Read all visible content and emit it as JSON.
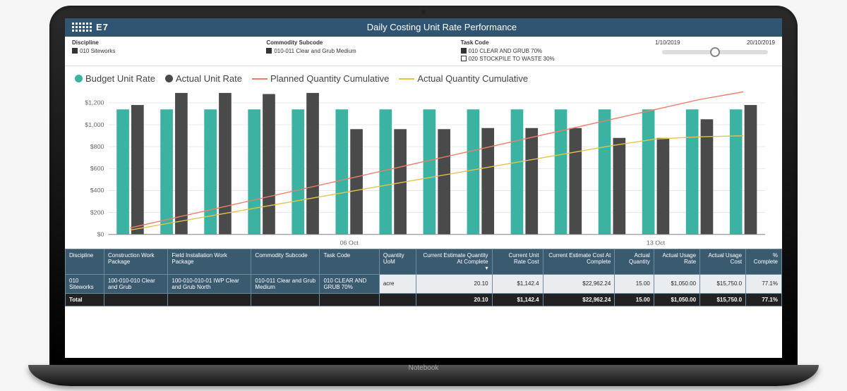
{
  "header": {
    "logo_text": "E7",
    "title": "Daily Costing Unit Rate Performance"
  },
  "filters": {
    "discipline": {
      "label": "Discipline",
      "items": [
        {
          "swatch": "#333333",
          "text": "010 Siteworks"
        }
      ]
    },
    "commodity": {
      "label": "Commodity Subcode",
      "items": [
        {
          "swatch": "#333333",
          "text": "010-011 Clear and Grub Medium"
        }
      ]
    },
    "task": {
      "label": "Task Code",
      "items": [
        {
          "swatch": "#333333",
          "text": "010 CLEAR AND GRUB 70%"
        },
        {
          "swatch": "empty",
          "text": "020 STOCKPILE TO WASTE 30%"
        }
      ]
    },
    "date_range": {
      "from": "1/10/2019",
      "to": "20/10/2019"
    }
  },
  "legend": [
    {
      "type": "dot",
      "color": "#3bb3a3",
      "label": "Budget Unit Rate"
    },
    {
      "type": "dot",
      "color": "#4a4a4a",
      "label": "Actual Unit Rate"
    },
    {
      "type": "line",
      "color": "#f07c6a",
      "label": "Planned Quantity Cumulative"
    },
    {
      "type": "line",
      "color": "#e6c24d",
      "label": "Actual Quantity Cumulative"
    }
  ],
  "chart": {
    "type": "bar+line",
    "background_color": "#ffffff",
    "grid_color": "#e6e6e6",
    "axis_color": "#888888",
    "label_fontsize": 9,
    "ylim": [
      0,
      1300
    ],
    "yticks": [
      0,
      200,
      400,
      600,
      800,
      1000,
      1200
    ],
    "ytick_labels": [
      "$0",
      "$200",
      "$400",
      "$600",
      "$800",
      "$1,000",
      "$1,200"
    ],
    "x_categories": [
      "01",
      "02",
      "03",
      "04",
      "05",
      "06 Oct",
      "07",
      "08",
      "09",
      "10",
      "11",
      "12",
      "13 Oct",
      "14",
      "15"
    ],
    "x_show_label": [
      false,
      false,
      false,
      false,
      false,
      true,
      false,
      false,
      false,
      false,
      false,
      false,
      true,
      false,
      false
    ],
    "series_bars": [
      {
        "name": "Budget Unit Rate",
        "color": "#3bb3a3",
        "values": [
          1140,
          1140,
          1140,
          1140,
          1140,
          1140,
          1140,
          1140,
          1140,
          1140,
          1140,
          1140,
          1140,
          1140,
          1140
        ]
      },
      {
        "name": "Actual Unit Rate",
        "color": "#4a4a4a",
        "values": [
          1180,
          1290,
          1290,
          1280,
          1290,
          960,
          960,
          960,
          970,
          970,
          970,
          880,
          880,
          1050,
          1180
        ]
      }
    ],
    "bar_group_width": 0.62,
    "bar_gap": 0.05,
    "series_lines": [
      {
        "name": "Planned Quantity Cumulative",
        "color": "#f07c6a",
        "width": 1.5,
        "values": [
          60,
          150,
          240,
          330,
          420,
          510,
          600,
          690,
          780,
          870,
          960,
          1050,
          1140,
          1230,
          1300
        ]
      },
      {
        "name": "Actual Quantity Cumulative",
        "color": "#e6c24d",
        "width": 1.5,
        "values": [
          40,
          110,
          180,
          250,
          320,
          390,
          460,
          530,
          600,
          670,
          740,
          810,
          870,
          890,
          900
        ]
      }
    ]
  },
  "table": {
    "columns": [
      "Discipline",
      "Construction Work Package",
      "Field Installation Work Package",
      "Commodity Subcode",
      "Task Code",
      "Quantity UoM",
      "Current Estimate Quantity At Complete",
      "Current Unit Rate Cost",
      "Current Estimate Cost At Complete",
      "Actual Quantity",
      "Actual Usage Rate",
      "Actual Usage Cost",
      "% Complete"
    ],
    "num_cols": [
      6,
      7,
      8,
      9,
      10,
      11,
      12
    ],
    "rows": [
      [
        "010 Siteworks",
        "100-010-010 Clear and Grub",
        "100-010-010-01 IWP Clear and Grub North",
        "010-011 Clear and Grub Medium",
        "010 CLEAR AND GRUB 70%",
        "acre",
        "20.10",
        "$1,142.4",
        "$22,962.24",
        "15.00",
        "$1,050.00",
        "$15,750.0",
        "77.1%"
      ]
    ],
    "total": [
      "Total",
      "",
      "",
      "",
      "",
      "",
      "20.10",
      "$1,142.4",
      "$22,962.24",
      "15.00",
      "$1,050.00",
      "$15,750.0",
      "77.1%"
    ]
  }
}
